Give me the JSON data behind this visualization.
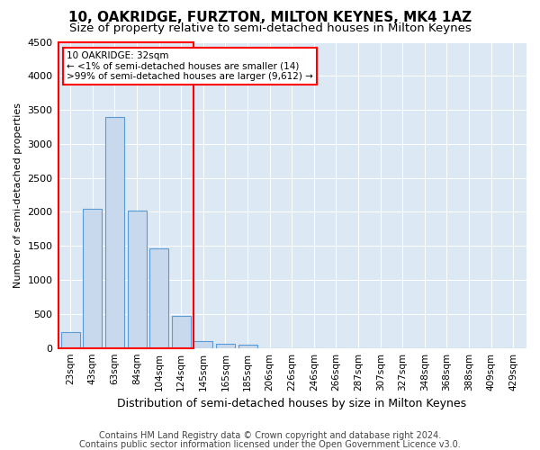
{
  "title1": "10, OAKRIDGE, FURZTON, MILTON KEYNES, MK4 1AZ",
  "title2": "Size of property relative to semi-detached houses in Milton Keynes",
  "xlabel": "Distribution of semi-detached houses by size in Milton Keynes",
  "ylabel": "Number of semi-detached properties",
  "categories": [
    "23sqm",
    "43sqm",
    "63sqm",
    "84sqm",
    "104sqm",
    "124sqm",
    "145sqm",
    "165sqm",
    "185sqm",
    "206sqm",
    "226sqm",
    "246sqm",
    "266sqm",
    "287sqm",
    "307sqm",
    "327sqm",
    "348sqm",
    "368sqm",
    "388sqm",
    "409sqm",
    "429sqm"
  ],
  "values": [
    230,
    2050,
    3400,
    2020,
    1460,
    470,
    100,
    60,
    50,
    0,
    0,
    0,
    0,
    0,
    0,
    0,
    0,
    0,
    0,
    0,
    0
  ],
  "bar_color": "#c8d9ed",
  "bar_edge_color": "#5b9bd5",
  "highlight_bar_index": 0,
  "annotation_text": "10 OAKRIDGE: 32sqm\n← <1% of semi-detached houses are smaller (14)\n>99% of semi-detached houses are larger (9,612) →",
  "annotation_box_color": "white",
  "annotation_box_edge_color": "#ff0000",
  "ylim": [
    0,
    4500
  ],
  "yticks": [
    0,
    500,
    1000,
    1500,
    2000,
    2500,
    3000,
    3500,
    4000,
    4500
  ],
  "footer1": "Contains HM Land Registry data © Crown copyright and database right 2024.",
  "footer2": "Contains public sector information licensed under the Open Government Licence v3.0.",
  "bg_color": "#dce9f5",
  "title1_fontsize": 11,
  "title2_fontsize": 9.5,
  "xlabel_fontsize": 9,
  "ylabel_fontsize": 8,
  "footer_fontsize": 7,
  "tick_fontsize": 7.5,
  "ytick_fontsize": 8
}
